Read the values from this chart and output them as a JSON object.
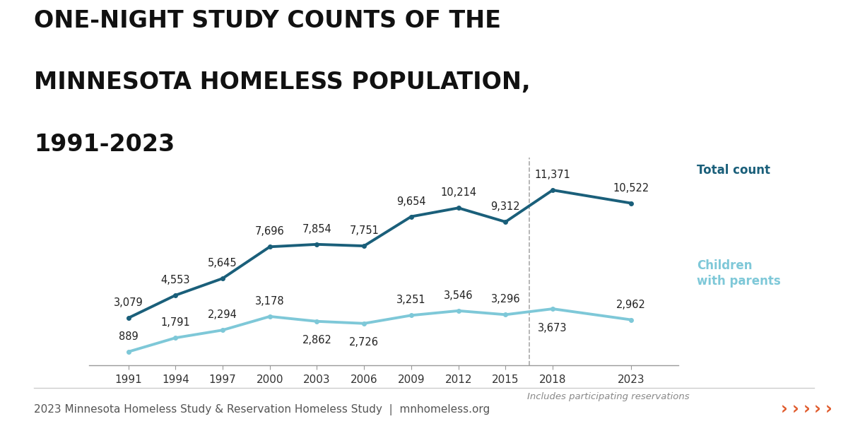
{
  "title_line1": "ONE-NIGHT STUDY COUNTS OF THE",
  "title_line2": "MINNESOTA HOMELESS POPULATION,",
  "title_line3": "1991-2023",
  "years": [
    1991,
    1994,
    1997,
    2000,
    2003,
    2006,
    2009,
    2012,
    2015,
    2018,
    2023
  ],
  "total_count": [
    3079,
    4553,
    5645,
    7696,
    7854,
    7751,
    9654,
    10214,
    9312,
    11371,
    10522
  ],
  "children_count": [
    889,
    1791,
    2294,
    3178,
    2862,
    2726,
    3251,
    3546,
    3296,
    3673,
    2962
  ],
  "total_color": "#1a5f7a",
  "children_color": "#7ec8d8",
  "dashed_line_x": 2016.5,
  "label_total": "Total count",
  "label_children": "Children\nwith parents",
  "note_text": "Includes participating reservations",
  "footer_text": "2023 Minnesota Homeless Study & Reservation Homeless Study  |  mnhomeless.org",
  "arrow_color": "#e05a2b",
  "background_color": "#ffffff",
  "title_fontsize": 24,
  "annotation_fontsize": 10.5,
  "footer_fontsize": 11
}
